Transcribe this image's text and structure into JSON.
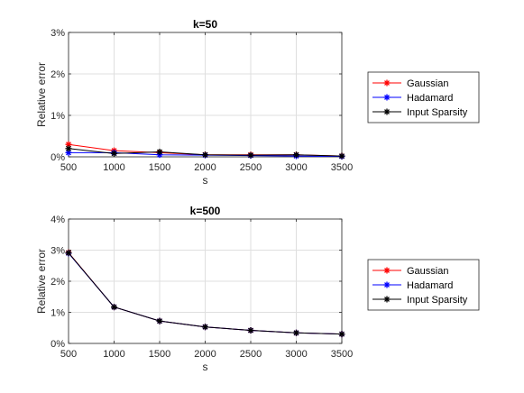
{
  "chart_data": [
    {
      "type": "line",
      "title": "k=50",
      "xlabel": "s",
      "ylabel": "Relative error",
      "x": [
        500,
        1000,
        1500,
        2000,
        2500,
        3000,
        3500
      ],
      "xticks": [
        "500",
        "1000",
        "1500",
        "2000",
        "2500",
        "3000",
        "3500"
      ],
      "xlim": [
        500,
        3500
      ],
      "ylim": [
        0,
        3
      ],
      "yticks": [
        "0%",
        "1%",
        "2%",
        "3%"
      ],
      "grid": true,
      "legend": "outside-right",
      "series": [
        {
          "name": "Gaussian",
          "color": "#ff0000",
          "values": [
            0.3,
            0.15,
            0.1,
            0.05,
            0.05,
            0.05,
            0.02
          ]
        },
        {
          "name": "Hadamard",
          "color": "#0000ff",
          "values": [
            0.1,
            0.1,
            0.05,
            0.04,
            0.03,
            0.02,
            0.01
          ]
        },
        {
          "name": "Input Sparsity",
          "color": "#000000",
          "values": [
            0.2,
            0.08,
            0.12,
            0.05,
            0.04,
            0.05,
            0.02
          ]
        }
      ]
    },
    {
      "type": "line",
      "title": "k=500",
      "xlabel": "s",
      "ylabel": "Relative error",
      "x": [
        500,
        1000,
        1500,
        2000,
        2500,
        3000,
        3500
      ],
      "xticks": [
        "500",
        "1000",
        "1500",
        "2000",
        "2500",
        "3000",
        "3500"
      ],
      "xlim": [
        500,
        3500
      ],
      "ylim": [
        0,
        4
      ],
      "yticks": [
        "0%",
        "1%",
        "2%",
        "3%",
        "4%"
      ],
      "grid": true,
      "legend": "outside-right",
      "series": [
        {
          "name": "Gaussian",
          "color": "#ff0000",
          "values": [
            2.92,
            1.17,
            0.72,
            0.53,
            0.42,
            0.34,
            0.3
          ]
        },
        {
          "name": "Hadamard",
          "color": "#0000ff",
          "values": [
            2.9,
            1.17,
            0.72,
            0.53,
            0.42,
            0.34,
            0.3
          ]
        },
        {
          "name": "Input Sparsity",
          "color": "#000000",
          "values": [
            2.91,
            1.17,
            0.72,
            0.53,
            0.42,
            0.34,
            0.3
          ]
        }
      ]
    }
  ]
}
